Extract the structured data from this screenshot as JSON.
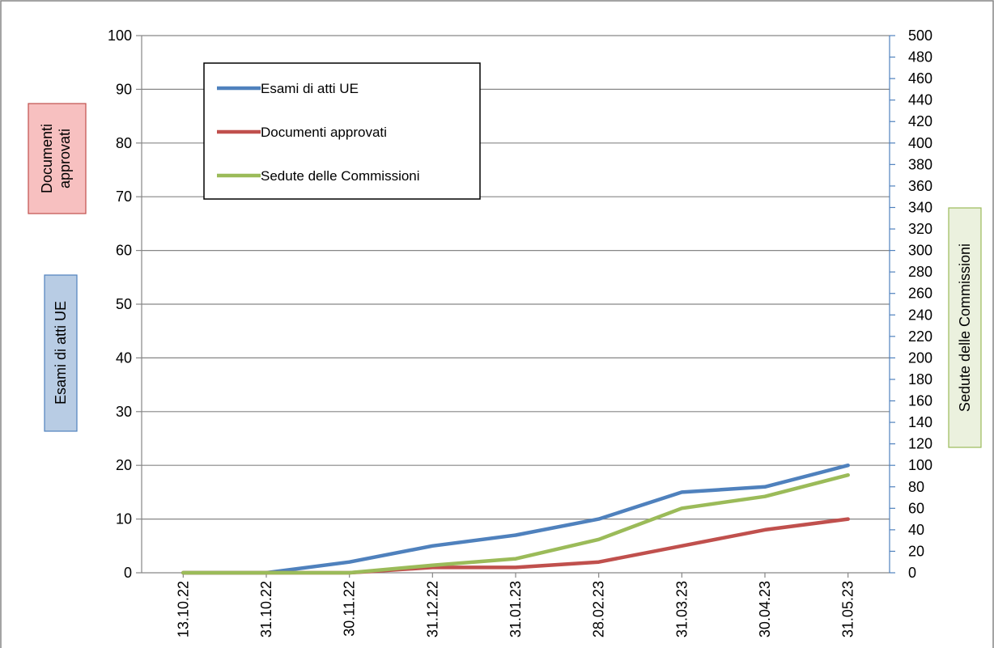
{
  "chart_data": {
    "type": "line",
    "categories": [
      "13.10.22",
      "31.10.22",
      "30.11.22",
      "31.12.22",
      "31.01.23",
      "28.02.23",
      "31.03.23",
      "30.04.23",
      "31.05.23"
    ],
    "series": [
      {
        "name": "Esami di atti UE",
        "axis": "left",
        "color": "#4f81bd",
        "values": [
          0,
          0,
          2,
          5,
          7,
          10,
          15,
          16,
          20
        ]
      },
      {
        "name": "Documenti approvati",
        "axis": "left",
        "color": "#c0504d",
        "values": [
          0,
          0,
          0,
          1,
          1,
          2,
          5,
          8,
          10
        ]
      },
      {
        "name": "Sedute delle Commissioni",
        "axis": "right",
        "color": "#9bbb59",
        "values": [
          0,
          0,
          0,
          7,
          13,
          31,
          60,
          71,
          91
        ]
      }
    ],
    "y_left": {
      "min": 0,
      "max": 100,
      "step": 10
    },
    "y_right": {
      "min": 0,
      "max": 500,
      "step": 20
    },
    "axis_titles": {
      "left_top": [
        "Documenti",
        "approvati"
      ],
      "left_bottom": "Esami di atti UE",
      "right": "Sedute delle Commissioni"
    },
    "grid": true,
    "legend_position": "top-left"
  }
}
